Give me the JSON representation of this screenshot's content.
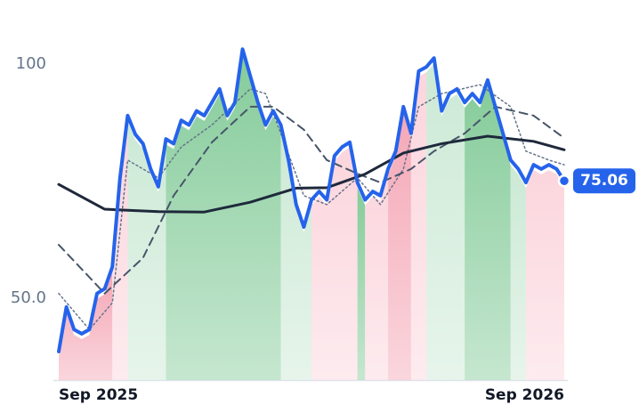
{
  "chart_data": {
    "type": "line",
    "ylim": [
      32.5,
      113.7
    ],
    "yticks": [
      {
        "value": 50,
        "label": "50.0"
      },
      100
    ],
    "xlim": [
      0,
      66
    ],
    "xticks": [
      {
        "value": 0,
        "label": "Sep 2025"
      },
      {
        "value": 66,
        "label": "Sep 2026"
      }
    ],
    "series": [
      {
        "color": "#2563eb",
        "style": "solid",
        "width": 4,
        "values": [
          38.6,
          48.1,
          43.3,
          42.4,
          43.3,
          51,
          52,
          56.7,
          75.7,
          89,
          85,
          83,
          77.6,
          73.8,
          84,
          83,
          88,
          87,
          90,
          89,
          91.8,
          94.7,
          89,
          91.8,
          103.2,
          97.5,
          91.8,
          87,
          90,
          87,
          79.5,
          70,
          65.2,
          71,
          72.8,
          71,
          80.4,
          82.3,
          83.3,
          74.7,
          71,
          72.8,
          71.9,
          77.6,
          81.4,
          90.9,
          85.2,
          98.5,
          99.4,
          101.3,
          90,
          93.7,
          94.7,
          91.8,
          93.7,
          91.8,
          96.6,
          90.9,
          85.2,
          79.5,
          77.6,
          74.7,
          78.5,
          77.6,
          78.5,
          77.6,
          75.06
        ]
      },
      {
        "color": "#1e293b",
        "style": "solid",
        "width": 3,
        "x": [
          0,
          6,
          13,
          19,
          25,
          31,
          35,
          40,
          45,
          50,
          56,
          62,
          66
        ],
        "values": [
          74.3,
          69,
          68.5,
          68.4,
          70.5,
          73.5,
          73.6,
          76.5,
          81,
          83,
          84.6,
          83.5,
          81.7
        ]
      },
      {
        "color": "#475569",
        "style": "dashed",
        "width": 2,
        "x": [
          0,
          6,
          11,
          15,
          20,
          25,
          28,
          32,
          35,
          39,
          42,
          46,
          49,
          53,
          57,
          62,
          66
        ],
        "values": [
          61.4,
          51,
          58.6,
          71.9,
          83.3,
          90.9,
          90.9,
          86,
          79.5,
          76.6,
          74.7,
          77.6,
          81.4,
          85.2,
          90.9,
          89,
          84.2
        ]
      },
      {
        "color": "#64748b",
        "style": "dotted",
        "width": 1.5,
        "x": [
          0,
          4,
          7,
          9,
          11,
          13,
          16,
          20,
          25,
          27,
          29,
          32,
          35,
          39,
          42,
          45,
          47,
          50,
          55,
          59,
          61,
          64,
          66
        ],
        "values": [
          51,
          43.3,
          49,
          79.5,
          77.6,
          75.7,
          82.3,
          87,
          94.7,
          93.7,
          85.2,
          71.9,
          70,
          75.7,
          70,
          77.6,
          90.9,
          93.7,
          95.6,
          90.9,
          81.4,
          79.5,
          78.5
        ]
      }
    ],
    "zones": [
      {
        "from": 0,
        "to": 7,
        "color": "#f4a3b3"
      },
      {
        "from": 7,
        "to": 9,
        "color": "#fbd3db"
      },
      {
        "from": 9,
        "to": 14,
        "color": "#c9e8d3"
      },
      {
        "from": 14,
        "to": 29,
        "color": "#7fc995"
      },
      {
        "from": 29,
        "to": 33,
        "color": "#c9e8d3"
      },
      {
        "from": 33,
        "to": 39,
        "color": "#fbd3db"
      },
      {
        "from": 39,
        "to": 40,
        "color": "#7fc995"
      },
      {
        "from": 40,
        "to": 43,
        "color": "#fbd3db"
      },
      {
        "from": 43,
        "to": 46,
        "color": "#f4a3b3"
      },
      {
        "from": 46,
        "to": 48,
        "color": "#fbd3db"
      },
      {
        "from": 48,
        "to": 53,
        "color": "#c9e8d3"
      },
      {
        "from": 53,
        "to": 59,
        "color": "#7fc995"
      },
      {
        "from": 59,
        "to": 61,
        "color": "#c9e8d3"
      },
      {
        "from": 61,
        "to": 66,
        "color": "#fbd3db"
      }
    ]
  }
}
